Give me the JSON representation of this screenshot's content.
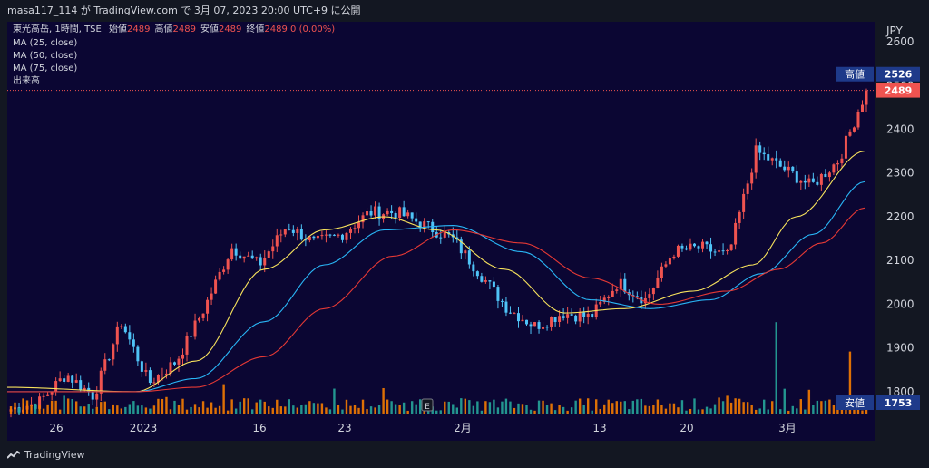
{
  "header": {
    "publish_text": "masa117_114 が TradingView.com で 3月 07, 2023 20:00 UTC+9 に公開"
  },
  "legend": {
    "symbol": "東光高岳, 1時間, TSE",
    "ohlc": [
      {
        "label": "始値",
        "value": "2489"
      },
      {
        "label": "高値",
        "value": "2489"
      },
      {
        "label": "安値",
        "value": "2489"
      },
      {
        "label": "終値",
        "value": "2489"
      }
    ],
    "change": "0 (0.00%)",
    "indicators": [
      "MA (25, close)",
      "MA (50, close)",
      "MA (75, close)",
      "出来高"
    ]
  },
  "price_axis": {
    "currency": "JPY",
    "high_label": "高値",
    "high_value": "2526",
    "last_value": "2489",
    "low_label": "安値",
    "low_value": "1753"
  },
  "event_marker": "E",
  "brand": "TradingView",
  "colors": {
    "background": "#0b0633",
    "up": "#f57c00",
    "down": "#26a69a",
    "bull_candle": "#ef5350",
    "bear_candle": "#4fc3f7",
    "ma25": "#f7e25c",
    "ma50": "#29b6f6",
    "ma75": "#e53935"
  },
  "chart_data": {
    "type": "candlestick",
    "title": "",
    "y_axis": {
      "ticks": [
        1800,
        1900,
        2000,
        2100,
        2200,
        2300,
        2400,
        2500,
        2600
      ],
      "range": [
        1750,
        2625
      ]
    },
    "x_axis": {
      "tick_labels": [
        "26",
        "2023",
        "16",
        "23",
        "2月",
        "13",
        "20",
        "3月"
      ]
    },
    "price_keypoints": [
      {
        "x": "12/22",
        "y": 1760
      },
      {
        "x": "12/26",
        "y": 1775
      },
      {
        "x": "12/28",
        "y": 1840
      },
      {
        "x": "01/04",
        "y": 1790
      },
      {
        "x": "01/05",
        "y": 1960
      },
      {
        "x": "01/06",
        "y": 1820
      },
      {
        "x": "01/11",
        "y": 1870
      },
      {
        "x": "01/12",
        "y": 1990
      },
      {
        "x": "01/13",
        "y": 2130
      },
      {
        "x": "01/17",
        "y": 2090
      },
      {
        "x": "01/18",
        "y": 2180
      },
      {
        "x": "01/20",
        "y": 2140
      },
      {
        "x": "01/23",
        "y": 2160
      },
      {
        "x": "01/24",
        "y": 2210
      },
      {
        "x": "01/26",
        "y": 2210
      },
      {
        "x": "01/27",
        "y": 2180
      },
      {
        "x": "01/31",
        "y": 2150
      },
      {
        "x": "02/02",
        "y": 2070
      },
      {
        "x": "02/06",
        "y": 1990
      },
      {
        "x": "02/08",
        "y": 1950
      },
      {
        "x": "02/10",
        "y": 1980
      },
      {
        "x": "02/14",
        "y": 1970
      },
      {
        "x": "02/16",
        "y": 2050
      },
      {
        "x": "02/20",
        "y": 2010
      },
      {
        "x": "02/22",
        "y": 2120
      },
      {
        "x": "02/24",
        "y": 2130
      },
      {
        "x": "02/28",
        "y": 2110
      },
      {
        "x": "03/01",
        "y": 2350
      },
      {
        "x": "03/02",
        "y": 2310
      },
      {
        "x": "03/03",
        "y": 2270
      },
      {
        "x": "03/06",
        "y": 2330
      },
      {
        "x": "03/07",
        "y": 2489
      }
    ],
    "moving_averages": [
      {
        "name": "MA (25, close)",
        "keypoints": [
          [
            0.0,
            1810
          ],
          [
            0.15,
            1800
          ],
          [
            0.22,
            1870
          ],
          [
            0.3,
            2080
          ],
          [
            0.37,
            2170
          ],
          [
            0.44,
            2200
          ],
          [
            0.5,
            2170
          ],
          [
            0.58,
            2080
          ],
          [
            0.65,
            1980
          ],
          [
            0.72,
            1990
          ],
          [
            0.8,
            2030
          ],
          [
            0.87,
            2090
          ],
          [
            0.92,
            2200
          ],
          [
            1.0,
            2350
          ]
        ]
      },
      {
        "name": "MA (50, close)",
        "keypoints": [
          [
            0.0,
            1800
          ],
          [
            0.15,
            1800
          ],
          [
            0.22,
            1830
          ],
          [
            0.3,
            1960
          ],
          [
            0.37,
            2090
          ],
          [
            0.44,
            2170
          ],
          [
            0.52,
            2180
          ],
          [
            0.6,
            2120
          ],
          [
            0.68,
            2010
          ],
          [
            0.75,
            1990
          ],
          [
            0.82,
            2010
          ],
          [
            0.88,
            2070
          ],
          [
            0.94,
            2160
          ],
          [
            1.0,
            2280
          ]
        ]
      },
      {
        "name": "MA (75, close)",
        "keypoints": [
          [
            0.0,
            1800
          ],
          [
            0.15,
            1800
          ],
          [
            0.22,
            1810
          ],
          [
            0.3,
            1880
          ],
          [
            0.37,
            1990
          ],
          [
            0.45,
            2110
          ],
          [
            0.52,
            2170
          ],
          [
            0.6,
            2140
          ],
          [
            0.68,
            2060
          ],
          [
            0.76,
            2000
          ],
          [
            0.84,
            2030
          ],
          [
            0.9,
            2080
          ],
          [
            0.95,
            2140
          ],
          [
            1.0,
            2220
          ]
        ]
      }
    ],
    "volume_spikes": [
      {
        "x_frac": 0.25,
        "value": 0.9
      },
      {
        "x_frac": 0.895,
        "value": 2.8
      },
      {
        "x_frac": 0.98,
        "value": 1.9
      }
    ]
  }
}
